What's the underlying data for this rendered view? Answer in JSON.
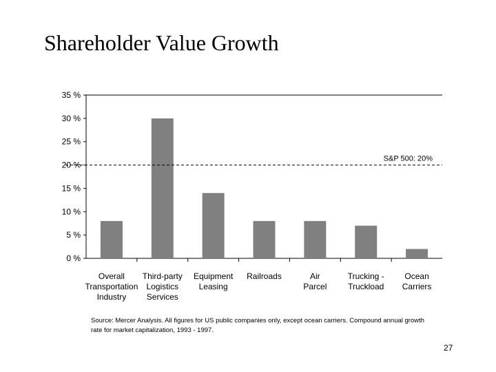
{
  "slide": {
    "title": "Shareholder Value Growth",
    "source": "Source: Mercer Analysis.  All figures for US public companies only, except ocean carriers. Compound annual growth rate for market capitalization, 1993 - 1997.",
    "page_number": "27"
  },
  "chart_data": {
    "type": "bar",
    "categories": [
      [
        "Overall",
        "Transportation",
        "Industry"
      ],
      [
        "Third-party",
        "Logistics",
        "Services"
      ],
      [
        "Equipment",
        "Leasing"
      ],
      [
        "Railroads"
      ],
      [
        "Air",
        "Parcel"
      ],
      [
        "Trucking -",
        "Truckload"
      ],
      [
        "Ocean",
        "Carriers"
      ]
    ],
    "values": [
      8,
      30,
      14,
      8,
      8,
      7,
      2
    ],
    "ylim": [
      0,
      35
    ],
    "yticks": [
      0,
      5,
      10,
      15,
      20,
      25,
      30,
      35
    ],
    "ytick_labels": [
      "0 %",
      "5 %",
      "10 %",
      "15 %",
      "20 %",
      "25 %",
      "30 %",
      "35 %"
    ],
    "reference_line": {
      "value": 20,
      "label": "S&P 500: 20%"
    },
    "bar_color": "#808080",
    "grid": false
  }
}
